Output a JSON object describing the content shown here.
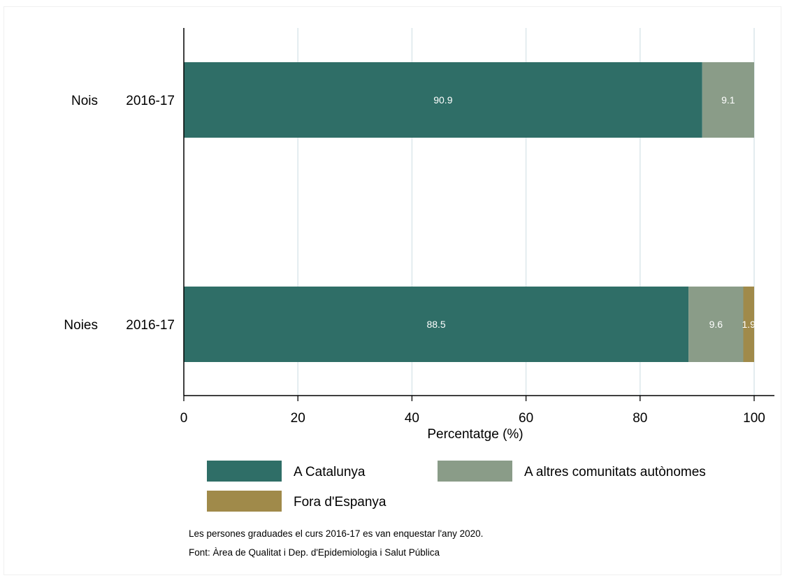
{
  "chart_data": {
    "type": "bar",
    "orientation": "horizontal",
    "stacked": true,
    "categories": [
      {
        "group": "Nois",
        "period": "2016-17"
      },
      {
        "group": "Noies",
        "period": "2016-17"
      }
    ],
    "series": [
      {
        "name": "A Catalunya",
        "color": "#2f6e67",
        "values": [
          90.9,
          88.5
        ],
        "labels": [
          "90.9",
          "88.5"
        ]
      },
      {
        "name": "A altres comunitats autònomes",
        "color": "#8a9c88",
        "values": [
          9.1,
          9.6
        ],
        "labels": [
          "9.1",
          "9.6"
        ]
      },
      {
        "name": "Fora d'Espanya",
        "color": "#a08a4a",
        "values": [
          0,
          1.9
        ],
        "labels": [
          "",
          "1.9"
        ]
      }
    ],
    "xlabel": "Percentatge (%)",
    "xlim": [
      0,
      100
    ],
    "xticks": [
      0,
      20,
      40,
      60,
      80,
      100
    ],
    "grid": "vertical",
    "legend_position": "bottom"
  },
  "notes": [
    "Les persones graduades el curs 2016-17 es van enquestar l'any 2020.",
    "Font: Àrea de Qualitat i Dep. d'Epidemiologia i Salut Pública"
  ]
}
